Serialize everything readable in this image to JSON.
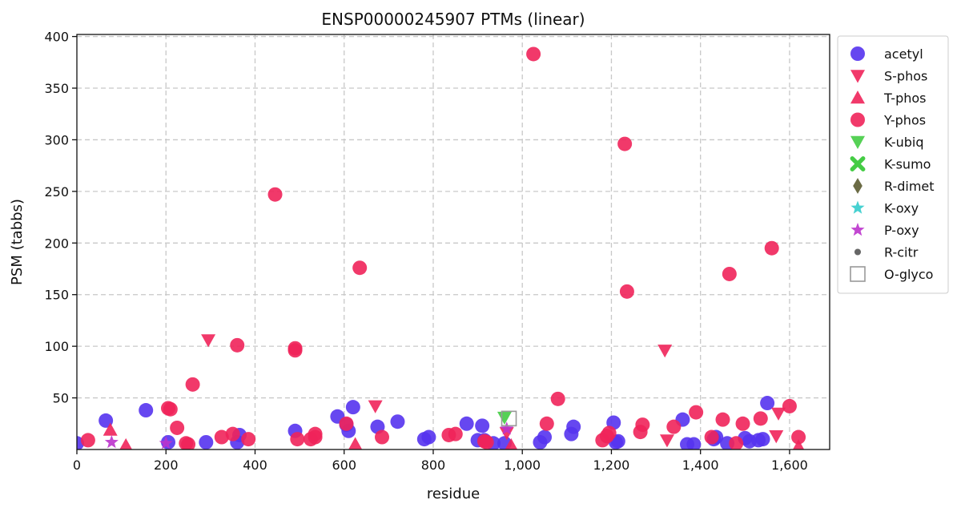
{
  "chart_data": {
    "type": "scatter",
    "title": "ENSP00000245907 PTMs (linear)",
    "xlabel": "residue",
    "ylabel": "PSM (tabbs)",
    "xlim": [
      0,
      1690
    ],
    "ylim": [
      0,
      402
    ],
    "x_ticks": [
      "0",
      "200",
      "400",
      "600",
      "800",
      "1,000",
      "1,200",
      "1,400",
      "1,600"
    ],
    "y_ticks": [
      "50",
      "100",
      "150",
      "200",
      "250",
      "300",
      "350",
      "400"
    ],
    "x_tick_values": [
      0,
      200,
      400,
      600,
      800,
      1000,
      1200,
      1400,
      1600
    ],
    "y_tick_values": [
      50,
      100,
      150,
      200,
      250,
      300,
      350,
      400
    ],
    "grid": true,
    "legend_position": "outside-right",
    "series": [
      {
        "name": "acetyl",
        "marker": "circle",
        "color": "#5533ee",
        "points": [
          [
            0,
            6
          ],
          [
            65,
            28
          ],
          [
            155,
            38
          ],
          [
            205,
            7
          ],
          [
            290,
            7
          ],
          [
            360,
            7
          ],
          [
            365,
            14
          ],
          [
            490,
            18
          ],
          [
            585,
            32
          ],
          [
            605,
            24
          ],
          [
            610,
            18
          ],
          [
            620,
            41
          ],
          [
            675,
            22
          ],
          [
            720,
            27
          ],
          [
            780,
            10
          ],
          [
            790,
            12
          ],
          [
            875,
            25
          ],
          [
            900,
            9
          ],
          [
            910,
            23
          ],
          [
            915,
            9
          ],
          [
            935,
            6
          ],
          [
            960,
            6
          ],
          [
            1040,
            7
          ],
          [
            1050,
            12
          ],
          [
            1110,
            15
          ],
          [
            1115,
            22
          ],
          [
            1205,
            26
          ],
          [
            1210,
            7
          ],
          [
            1215,
            8
          ],
          [
            1360,
            29
          ],
          [
            1370,
            5
          ],
          [
            1385,
            5
          ],
          [
            1430,
            10
          ],
          [
            1435,
            12
          ],
          [
            1460,
            6
          ],
          [
            1500,
            11
          ],
          [
            1510,
            8
          ],
          [
            1530,
            9
          ],
          [
            1540,
            10
          ],
          [
            1550,
            45
          ]
        ]
      },
      {
        "name": "S-phos",
        "marker": "triangle-down",
        "color": "#f0245a",
        "points": [
          [
            295,
            106
          ],
          [
            670,
            42
          ],
          [
            965,
            16
          ],
          [
            1320,
            96
          ],
          [
            1325,
            9
          ],
          [
            1570,
            13
          ],
          [
            1575,
            35
          ]
        ]
      },
      {
        "name": "T-phos",
        "marker": "triangle-up",
        "color": "#f0245a",
        "points": [
          [
            75,
            19
          ],
          [
            110,
            4
          ],
          [
            625,
            5
          ],
          [
            975,
            4
          ],
          [
            1620,
            3
          ]
        ]
      },
      {
        "name": "Y-phos",
        "marker": "circle",
        "color": "#f0245a",
        "points": [
          [
            25,
            9
          ],
          [
            205,
            40
          ],
          [
            210,
            39
          ],
          [
            225,
            21
          ],
          [
            245,
            6
          ],
          [
            250,
            5
          ],
          [
            260,
            63
          ],
          [
            325,
            12
          ],
          [
            350,
            15
          ],
          [
            360,
            101
          ],
          [
            385,
            10
          ],
          [
            445,
            247
          ],
          [
            490,
            98
          ],
          [
            490,
            96
          ],
          [
            495,
            10
          ],
          [
            525,
            10
          ],
          [
            535,
            12
          ],
          [
            535,
            15
          ],
          [
            605,
            25
          ],
          [
            635,
            176
          ],
          [
            685,
            12
          ],
          [
            835,
            14
          ],
          [
            850,
            15
          ],
          [
            915,
            8
          ],
          [
            920,
            7
          ],
          [
            1025,
            383
          ],
          [
            1055,
            25
          ],
          [
            1080,
            49
          ],
          [
            1180,
            9
          ],
          [
            1190,
            13
          ],
          [
            1195,
            16
          ],
          [
            1230,
            296
          ],
          [
            1235,
            153
          ],
          [
            1265,
            17
          ],
          [
            1270,
            24
          ],
          [
            1340,
            22
          ],
          [
            1390,
            36
          ],
          [
            1425,
            12
          ],
          [
            1450,
            29
          ],
          [
            1465,
            170
          ],
          [
            1480,
            6
          ],
          [
            1495,
            25
          ],
          [
            1535,
            30
          ],
          [
            1560,
            195
          ],
          [
            1600,
            42
          ],
          [
            1620,
            12
          ]
        ]
      },
      {
        "name": "K-ubiq",
        "marker": "triangle-down",
        "color": "#44cc44",
        "points": [
          [
            960,
            31
          ]
        ]
      },
      {
        "name": "K-sumo",
        "marker": "x-thick",
        "color": "#44cc44",
        "points": []
      },
      {
        "name": "R-dimet",
        "marker": "diamond",
        "color": "#6b6b45",
        "points": []
      },
      {
        "name": "K-oxy",
        "marker": "star",
        "color": "#33cccc",
        "points": []
      },
      {
        "name": "P-oxy",
        "marker": "star",
        "color": "#bb33cc",
        "points": [
          [
            78,
            7
          ],
          [
            200,
            6
          ],
          [
            965,
            20
          ]
        ]
      },
      {
        "name": "R-citr",
        "marker": "small-circle",
        "color": "#666666",
        "points": []
      },
      {
        "name": "O-glyco",
        "marker": "square-open",
        "color": "#999999",
        "points": [
          [
            970,
            30
          ]
        ]
      }
    ]
  }
}
